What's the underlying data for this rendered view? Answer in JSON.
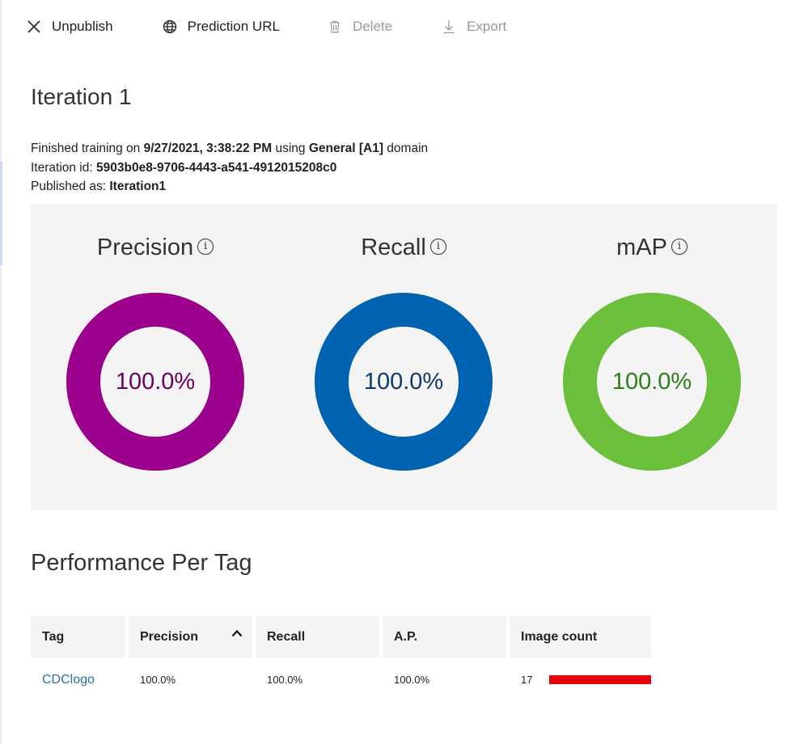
{
  "toolbar": {
    "unpublish": "Unpublish",
    "prediction_url": "Prediction URL",
    "delete": "Delete",
    "export": "Export"
  },
  "iteration": {
    "title": "Iteration 1",
    "finished_prefix": "Finished training on ",
    "finished_date": "9/27/2021, 3:38:22 PM",
    "using_text": " using ",
    "domain_name": "General [A1]",
    "domain_suffix": " domain",
    "id_label": "Iteration id: ",
    "id_value": "5903b0e8-9706-4443-a541-4912015208c0",
    "published_label": "Published as: ",
    "published_value": "Iteration1"
  },
  "metrics": [
    {
      "label": "Precision",
      "value_text": "100.0%",
      "value": 100.0,
      "ring_color": "#9b008c",
      "text_color": "#6b0060"
    },
    {
      "label": "Recall",
      "value_text": "100.0%",
      "value": 100.0,
      "ring_color": "#0063b1",
      "text_color": "#0f3b6e"
    },
    {
      "label": "mAP",
      "value_text": "100.0%",
      "value": 100.0,
      "ring_color": "#6bbf3a",
      "text_color": "#2f7d1a"
    }
  ],
  "info_icon_glyph": "i",
  "performance": {
    "title": "Performance Per Tag",
    "headers": [
      "Tag",
      "Precision",
      "Recall",
      "A.P.",
      "Image count"
    ],
    "sorted_column": "Precision",
    "rows": [
      {
        "tag": "CDClogo",
        "precision": "100.0%",
        "recall": "100.0%",
        "ap": "100.0%",
        "image_count": "17",
        "image_count_value": 17,
        "bar_color": "#e8000b"
      }
    ]
  }
}
